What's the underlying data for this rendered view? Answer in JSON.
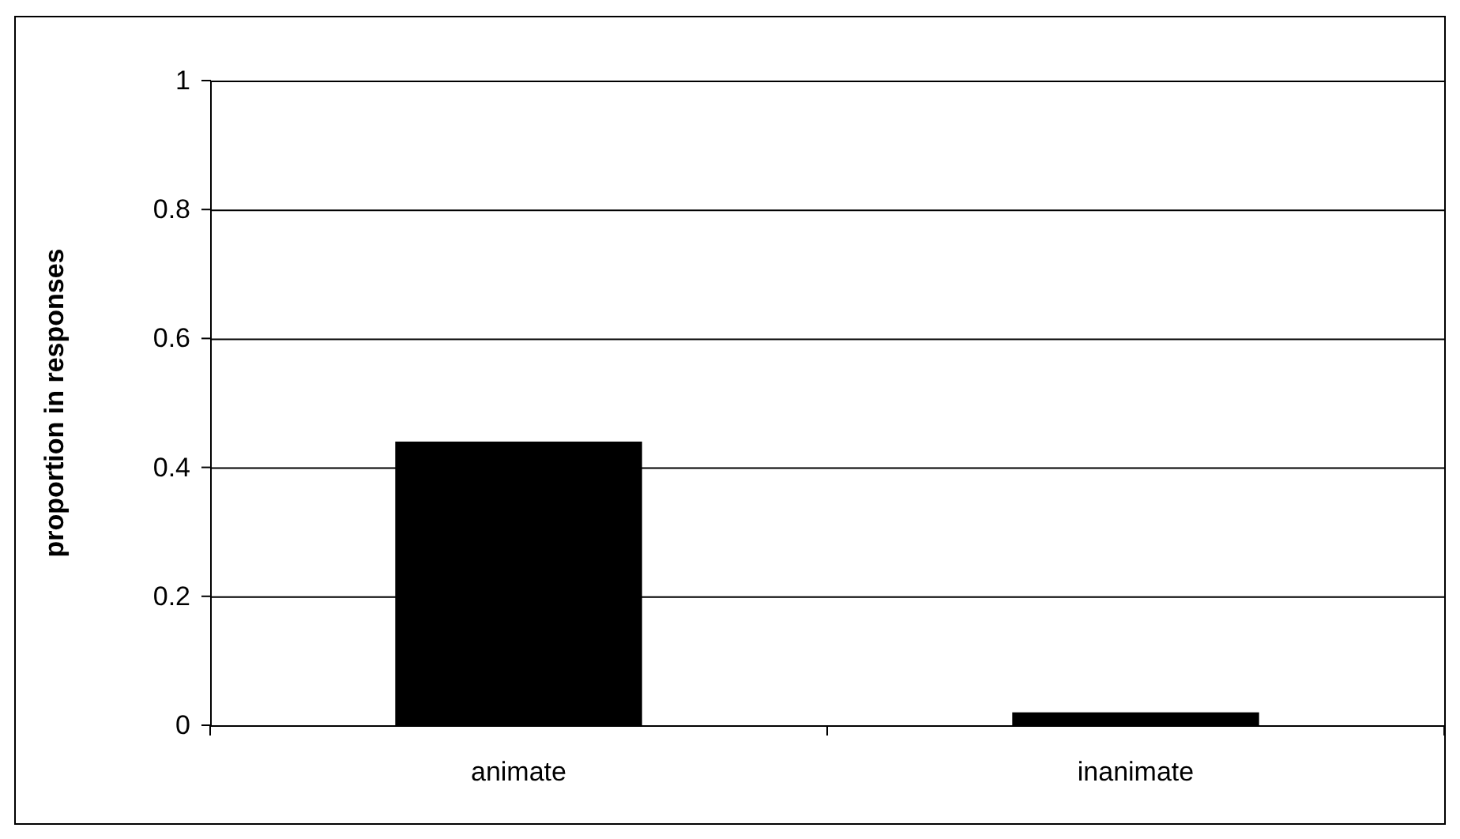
{
  "chart_data": {
    "type": "bar",
    "ylabel": "proportion in responses",
    "categories": [
      "animate",
      "inanimate"
    ],
    "values": [
      0.44,
      0.02
    ],
    "color": "#000000",
    "ylim": [
      0,
      1
    ],
    "yticks": [
      0,
      0.2,
      0.4,
      0.6,
      0.8,
      1
    ],
    "grid": "y"
  }
}
